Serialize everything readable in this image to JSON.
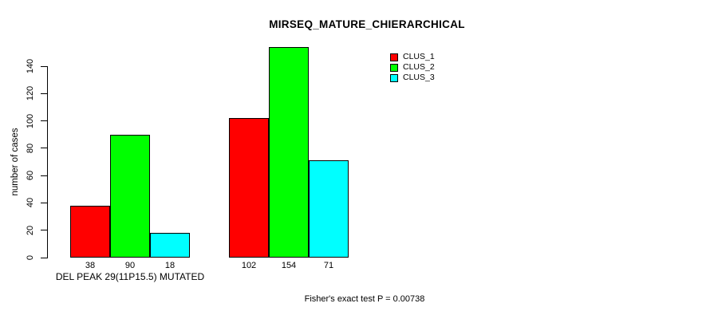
{
  "chart_data": {
    "type": "bar",
    "title": "MIRSEQ_MATURE_CHIERARCHICAL",
    "ylabel": "number of cases",
    "xlabel": "",
    "yticks": [
      0,
      20,
      40,
      60,
      80,
      100,
      120,
      140
    ],
    "ylim": [
      0,
      140
    ],
    "grid": false,
    "legend_position": "top-right",
    "categories": [
      "DEL PEAK 29(11P15.5) MUTATED",
      ""
    ],
    "series": [
      {
        "name": "CLUS_1",
        "color": "#ff0000",
        "values": [
          38,
          102
        ]
      },
      {
        "name": "CLUS_2",
        "color": "#00ff00",
        "values": [
          90,
          154
        ]
      },
      {
        "name": "CLUS_3",
        "color": "#00ffff",
        "values": [
          18,
          71
        ]
      }
    ],
    "bar_value_labels": [
      [
        38,
        90,
        18
      ],
      [
        102,
        154,
        71
      ]
    ],
    "footer": "Fisher's exact test P = 0.00738"
  }
}
